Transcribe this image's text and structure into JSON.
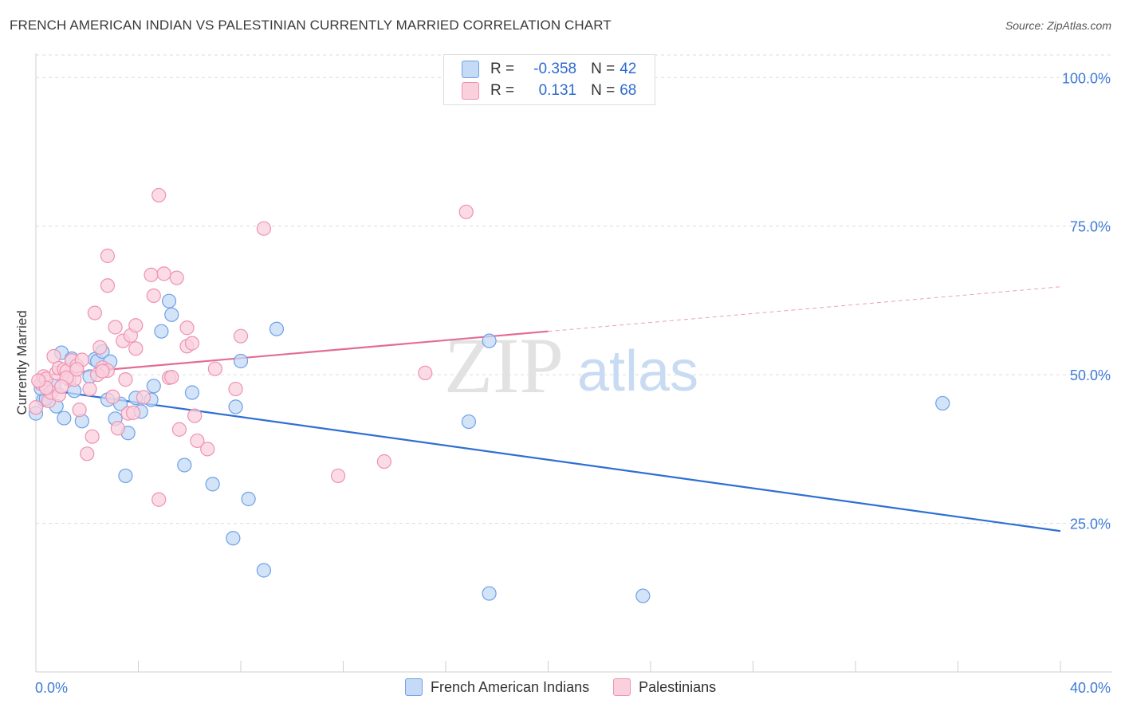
{
  "title": "FRENCH AMERICAN INDIAN VS PALESTINIAN CURRENTLY MARRIED CORRELATION CHART",
  "source": "Source: ZipAtlas.com",
  "watermark": {
    "zip": "ZIP",
    "atlas": "atlas"
  },
  "legend": {
    "rows": [
      {
        "r_label": "R =",
        "r_value": "-0.358",
        "n_label": "N =",
        "n_value": "42",
        "color": "#a8c8f0"
      },
      {
        "r_label": "R =",
        "r_value": "0.131",
        "n_label": "N =",
        "n_value": "68",
        "color": "#f8b8cc"
      }
    ]
  },
  "bottom_legend": [
    "French American Indians",
    "Palestinians"
  ],
  "chart_data": {
    "type": "scatter",
    "xlabel": "",
    "ylabel": "Currently Married",
    "xlim": [
      0,
      40
    ],
    "ylim": [
      0,
      105
    ],
    "x_tick_labels": [
      "0.0%",
      "40.0%"
    ],
    "y_ticks": [
      25,
      50,
      75,
      100
    ],
    "y_tick_labels": [
      "25.0%",
      "50.0%",
      "75.0%",
      "100.0%"
    ],
    "grid": true,
    "legend_position": "top-center",
    "series": [
      {
        "name": "French American Indians",
        "color": "#6ea1e6",
        "fill": "#c4daf6",
        "trend": {
          "x": [
            0,
            40
          ],
          "y": [
            47.7,
            23.7
          ],
          "dashed_from": null
        },
        "points": [
          [
            0.0,
            43.5
          ],
          [
            0.3,
            45.8
          ],
          [
            0.4,
            46.0
          ],
          [
            0.7,
            48.1
          ],
          [
            0.8,
            44.7
          ],
          [
            1.0,
            53.7
          ],
          [
            1.1,
            42.7
          ],
          [
            1.4,
            52.7
          ],
          [
            1.5,
            47.3
          ],
          [
            1.8,
            42.2
          ],
          [
            2.1,
            49.7
          ],
          [
            2.3,
            52.6
          ],
          [
            2.4,
            52.3
          ],
          [
            2.6,
            53.9
          ],
          [
            2.9,
            52.2
          ],
          [
            2.8,
            45.8
          ],
          [
            3.1,
            42.6
          ],
          [
            3.3,
            45.1
          ],
          [
            3.5,
            33.0
          ],
          [
            3.6,
            40.2
          ],
          [
            3.9,
            46.1
          ],
          [
            4.1,
            43.8
          ],
          [
            4.5,
            45.8
          ],
          [
            4.6,
            48.1
          ],
          [
            4.9,
            57.3
          ],
          [
            5.2,
            62.4
          ],
          [
            5.3,
            60.1
          ],
          [
            5.8,
            34.8
          ],
          [
            6.1,
            47.0
          ],
          [
            6.9,
            31.6
          ],
          [
            7.7,
            22.5
          ],
          [
            7.8,
            44.6
          ],
          [
            8.0,
            52.3
          ],
          [
            8.3,
            29.1
          ],
          [
            8.9,
            17.1
          ],
          [
            9.4,
            57.7
          ],
          [
            16.9,
            42.1
          ],
          [
            17.7,
            55.7
          ],
          [
            17.7,
            13.2
          ],
          [
            23.7,
            12.8
          ],
          [
            35.4,
            45.2
          ],
          [
            0.2,
            47.7
          ]
        ]
      },
      {
        "name": "Palestinians",
        "color": "#ee92b0",
        "fill": "#fad0dd",
        "trend": {
          "x": [
            0,
            40
          ],
          "y": [
            49.8,
            64.8
          ],
          "dashed_from": 20
        },
        "points": [
          [
            0.0,
            44.5
          ],
          [
            0.2,
            48.5
          ],
          [
            0.3,
            49.7
          ],
          [
            0.4,
            49.3
          ],
          [
            0.5,
            45.6
          ],
          [
            0.6,
            47.0
          ],
          [
            0.7,
            53.1
          ],
          [
            0.8,
            50.3
          ],
          [
            0.9,
            51.1
          ],
          [
            0.9,
            46.6
          ],
          [
            1.1,
            50.9
          ],
          [
            1.2,
            50.6
          ],
          [
            1.3,
            49.2
          ],
          [
            1.4,
            52.4
          ],
          [
            1.5,
            49.2
          ],
          [
            1.6,
            51.5
          ],
          [
            1.7,
            44.1
          ],
          [
            1.8,
            52.5
          ],
          [
            2.0,
            36.7
          ],
          [
            2.1,
            47.6
          ],
          [
            2.2,
            39.6
          ],
          [
            2.3,
            60.4
          ],
          [
            2.5,
            54.6
          ],
          [
            2.6,
            51.2
          ],
          [
            2.8,
            50.7
          ],
          [
            2.8,
            65.0
          ],
          [
            2.8,
            70.0
          ],
          [
            3.1,
            58.0
          ],
          [
            3.2,
            41.0
          ],
          [
            3.4,
            55.7
          ],
          [
            3.5,
            49.2
          ],
          [
            3.6,
            43.5
          ],
          [
            3.7,
            56.6
          ],
          [
            3.9,
            58.3
          ],
          [
            3.9,
            54.4
          ],
          [
            4.2,
            46.2
          ],
          [
            4.5,
            66.8
          ],
          [
            4.6,
            63.3
          ],
          [
            4.8,
            80.2
          ],
          [
            4.8,
            29.0
          ],
          [
            5.0,
            67.0
          ],
          [
            5.2,
            49.5
          ],
          [
            5.3,
            49.6
          ],
          [
            5.5,
            66.3
          ],
          [
            5.6,
            40.8
          ],
          [
            5.9,
            57.9
          ],
          [
            5.9,
            54.8
          ],
          [
            6.1,
            55.3
          ],
          [
            6.2,
            43.1
          ],
          [
            6.3,
            38.9
          ],
          [
            6.7,
            37.5
          ],
          [
            7.0,
            51.0
          ],
          [
            7.8,
            47.6
          ],
          [
            8.0,
            56.5
          ],
          [
            8.9,
            74.6
          ],
          [
            11.8,
            33.0
          ],
          [
            13.6,
            35.4
          ],
          [
            15.2,
            50.3
          ],
          [
            16.8,
            77.4
          ],
          [
            2.4,
            50.0
          ],
          [
            3.8,
            43.6
          ],
          [
            0.4,
            47.8
          ],
          [
            1.2,
            49.5
          ],
          [
            2.6,
            50.6
          ],
          [
            3.0,
            46.3
          ],
          [
            1.0,
            48.0
          ],
          [
            1.6,
            50.9
          ],
          [
            0.1,
            49.0
          ]
        ]
      }
    ]
  }
}
